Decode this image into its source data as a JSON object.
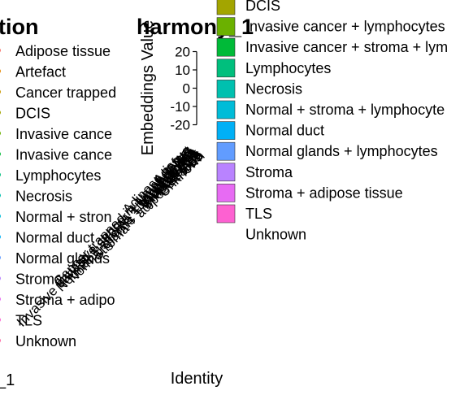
{
  "left_panel": {
    "title": "tion",
    "x_fragment": "_1",
    "legend": [
      {
        "label": "Adipose tissue",
        "color": "#F8766D"
      },
      {
        "label": "Artefact",
        "color": "#E58700"
      },
      {
        "label": "Cancer trapped",
        "color": "#C99800"
      },
      {
        "label": "DCIS",
        "color": "#A3A500"
      },
      {
        "label": "Invasive cance",
        "color": "#6BB100"
      },
      {
        "label": "Invasive cance",
        "color": "#00BA38"
      },
      {
        "label": "Lymphocytes",
        "color": "#00BF7D"
      },
      {
        "label": "Necrosis",
        "color": "#00C0AF"
      },
      {
        "label": "Normal + stron",
        "color": "#00BCD8"
      },
      {
        "label": "Normal duct",
        "color": "#00B0F6"
      },
      {
        "label": "Normal glands",
        "color": "#619CFF"
      },
      {
        "label": "Stroma",
        "color": "#B983FF"
      },
      {
        "label": "Stroma + adipo",
        "color": "#E76BF3"
      },
      {
        "label": "TLS",
        "color": "#FD61D1"
      },
      {
        "label": "Unknown",
        "color": "#FF67A4"
      }
    ]
  },
  "chart_data": {
    "type": "scatter",
    "title": "harmony_1",
    "xlabel": "Identity",
    "ylabel": "Embeddings Value",
    "y_ticks": [
      20,
      10,
      0,
      -10,
      -20
    ],
    "ylim": [
      -22,
      22
    ]
  },
  "legend": [
    {
      "label": "DCIS",
      "color": "#A3A500"
    },
    {
      "label": "Invasive cancer + lymphocytes",
      "color": "#6BB100"
    },
    {
      "label": "Invasive cancer + stroma + lym",
      "color": "#00BA38"
    },
    {
      "label": "Lymphocytes",
      "color": "#00BF7D"
    },
    {
      "label": "Necrosis",
      "color": "#00C0AF"
    },
    {
      "label": "Normal + stroma + lymphocyte",
      "color": "#00BCD8"
    },
    {
      "label": "Normal duct",
      "color": "#00B0F6"
    },
    {
      "label": "Normal glands + lymphocytes",
      "color": "#619CFF"
    },
    {
      "label": "Stroma",
      "color": "#B983FF"
    },
    {
      "label": "Stroma + adipose tissue",
      "color": "#E76BF3"
    },
    {
      "label": "TLS",
      "color": "#FD61D1"
    },
    {
      "label": "Unknown",
      "color": ""
    }
  ],
  "x_tick_labels": [
    "Adipose tissue",
    "Artefact",
    "Cancer trapped in lymphocytes",
    "DCIS",
    "Invasive cancer + lymphocytes",
    "Invasive cancer + stroma + lymphocytes",
    "Lymphocytes",
    "Necrosis",
    "Normal + stroma + lymphocytes",
    "Normal duct",
    "Normal glands + lymphocytes",
    "Stroma",
    "Stroma + adipose tissue",
    "TLS",
    "Unknown"
  ]
}
